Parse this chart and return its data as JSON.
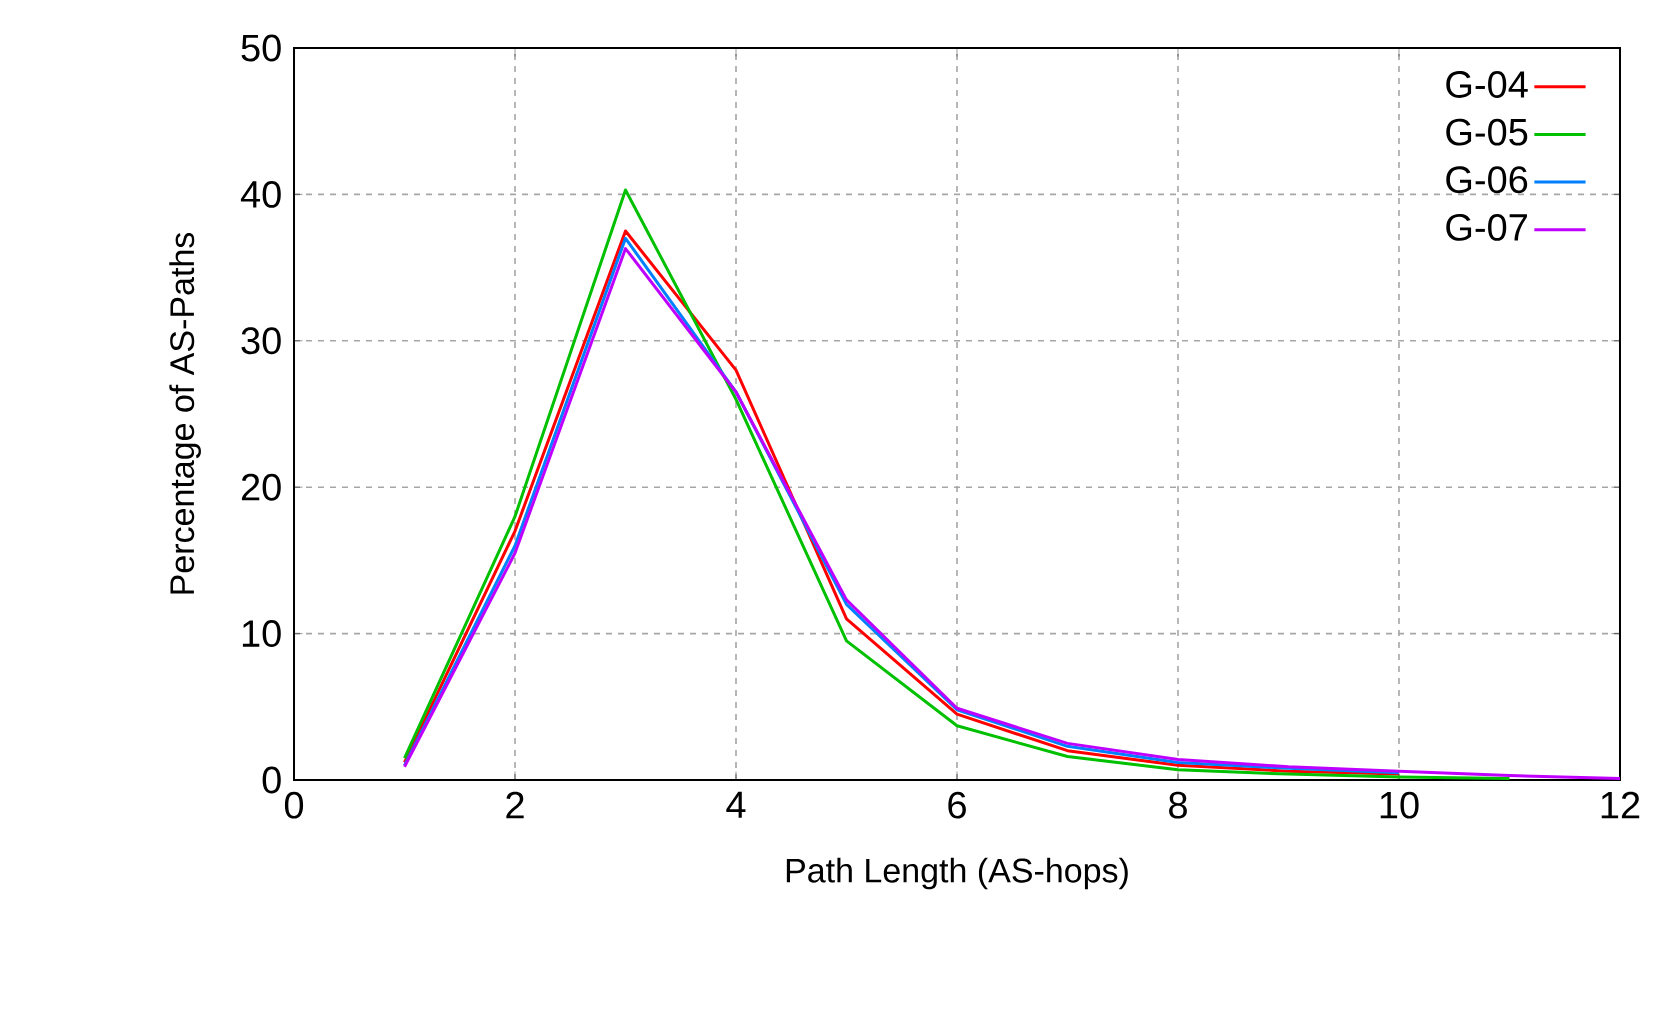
{
  "chart_data": {
    "type": "line",
    "xlabel": "Path Length (AS-hops)",
    "ylabel": "Percentage of AS-Paths",
    "x": [
      1,
      2,
      3,
      4,
      5,
      6,
      7,
      8,
      9,
      10,
      11,
      12
    ],
    "series": [
      {
        "name": "G-04",
        "color": "#ff0000",
        "values": [
          1.2,
          17,
          37.5,
          28,
          11,
          4.5,
          2,
          1,
          0.6,
          0.4,
          null,
          null
        ]
      },
      {
        "name": "G-05",
        "color": "#00c000",
        "values": [
          1.5,
          18,
          40.3,
          26,
          9.5,
          3.7,
          1.6,
          0.7,
          0.4,
          0.2,
          0.1,
          null
        ]
      },
      {
        "name": "G-06",
        "color": "#0080ff",
        "values": [
          1,
          16,
          37,
          26.5,
          12,
          4.8,
          2.3,
          1.2,
          0.8,
          0.5,
          null,
          null
        ]
      },
      {
        "name": "G-07",
        "color": "#c000ff",
        "values": [
          0.9,
          15.5,
          36.3,
          26.5,
          12.3,
          4.9,
          2.5,
          1.4,
          0.9,
          0.6,
          0.3,
          0.1
        ]
      }
    ],
    "xlim": [
      0,
      12
    ],
    "ylim": [
      0,
      50
    ],
    "xticks": [
      0,
      2,
      4,
      6,
      8,
      10,
      12
    ],
    "yticks": [
      0,
      10,
      20,
      30,
      40,
      50
    ],
    "grid": true,
    "legend": "top right",
    "marker": "none",
    "line_style": "solid"
  }
}
